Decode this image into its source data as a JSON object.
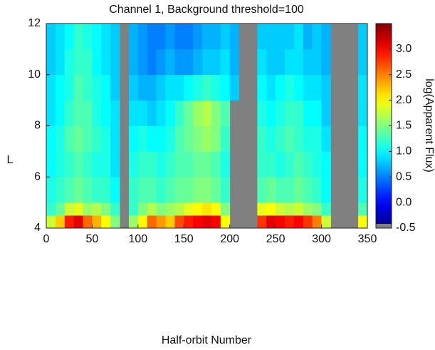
{
  "chart_data": {
    "type": "heatmap",
    "title": "Channel 1, Background threshold=100",
    "xlabel": "Half-orbit Number",
    "ylabel": "L",
    "colorbar_label": "log(Apparent Flux)",
    "colormap": "jet",
    "missing_color": "#808080",
    "xlim": [
      0,
      350
    ],
    "xticks": [
      0,
      50,
      100,
      150,
      200,
      250,
      300,
      350
    ],
    "ylim": [
      4,
      12
    ],
    "yticks": [
      4,
      6,
      8,
      10,
      12
    ],
    "clim": [
      -0.5,
      3.5
    ],
    "cticks": [
      -0.5,
      {
        "value": 0,
        "label": "0.0"
      },
      0.5,
      {
        "value": 1,
        "label": "1.0"
      },
      1.5,
      {
        "value": 2,
        "label": "2.0"
      },
      2.5,
      {
        "value": 3,
        "label": "3.0"
      }
    ],
    "x_edges": [
      0,
      10,
      20,
      30,
      40,
      50,
      60,
      70,
      80,
      90,
      100,
      110,
      120,
      130,
      140,
      150,
      160,
      170,
      180,
      190,
      200,
      210,
      220,
      230,
      240,
      250,
      260,
      270,
      280,
      290,
      300,
      310,
      320,
      330,
      340,
      350
    ],
    "y_edges": [
      4,
      4.5,
      5,
      6,
      7,
      8,
      9,
      10,
      11,
      12
    ],
    "z": [
      [
        1.8,
        2.2,
        2.9,
        3.1,
        2.6,
        2.3,
        2.0,
        1.5,
        null,
        1.6,
        2.0,
        2.6,
        2.4,
        2.2,
        2.7,
        2.9,
        3.0,
        3.1,
        3.0,
        2.0,
        null,
        null,
        null,
        2.8,
        3.1,
        3.0,
        2.9,
        3.0,
        2.8,
        2.5,
        1.8,
        null,
        null,
        null,
        2.0
      ],
      [
        1.2,
        1.4,
        1.8,
        1.9,
        1.6,
        1.7,
        1.5,
        1.2,
        null,
        1.2,
        1.5,
        1.7,
        1.5,
        1.6,
        1.7,
        1.9,
        2.0,
        2.1,
        2.0,
        1.5,
        null,
        null,
        null,
        1.9,
        2.0,
        1.8,
        1.7,
        1.8,
        1.6,
        1.5,
        1.2,
        null,
        null,
        null,
        1.3
      ],
      [
        1.1,
        1.2,
        1.3,
        1.4,
        1.3,
        1.2,
        1.2,
        1.0,
        null,
        1.2,
        1.3,
        1.3,
        1.2,
        1.3,
        1.4,
        1.4,
        1.5,
        1.5,
        1.4,
        1.2,
        null,
        null,
        null,
        1.3,
        1.4,
        1.3,
        1.3,
        1.4,
        1.3,
        1.2,
        1.0,
        null,
        null,
        null,
        1.1
      ],
      [
        1.0,
        1.1,
        1.2,
        1.3,
        1.2,
        1.1,
        1.1,
        0.9,
        null,
        1.1,
        1.2,
        1.2,
        1.1,
        1.2,
        1.3,
        1.3,
        1.4,
        1.4,
        1.3,
        1.1,
        null,
        null,
        null,
        1.2,
        1.2,
        1.1,
        1.2,
        1.3,
        1.2,
        1.1,
        1.0,
        null,
        null,
        null,
        1.0
      ],
      [
        1.0,
        1.1,
        1.3,
        1.4,
        1.3,
        1.2,
        1.1,
        0.9,
        null,
        1.0,
        1.1,
        1.0,
        1.0,
        1.1,
        1.3,
        1.4,
        1.5,
        1.6,
        1.5,
        1.2,
        null,
        null,
        null,
        1.2,
        1.1,
        1.2,
        1.3,
        1.2,
        1.1,
        1.1,
        0.9,
        null,
        null,
        null,
        1.0
      ],
      [
        0.9,
        1.0,
        1.2,
        1.3,
        1.3,
        1.1,
        1.0,
        0.9,
        null,
        0.9,
        0.9,
        0.8,
        0.9,
        1.0,
        1.2,
        1.4,
        1.6,
        1.7,
        1.5,
        1.3,
        null,
        null,
        null,
        1.1,
        1.0,
        1.1,
        1.2,
        1.2,
        1.0,
        1.0,
        0.8,
        null,
        null,
        null,
        0.9
      ],
      [
        0.9,
        1.0,
        1.1,
        1.3,
        1.2,
        1.1,
        1.0,
        0.8,
        null,
        0.8,
        0.7,
        0.7,
        0.8,
        0.9,
        0.9,
        1.0,
        1.1,
        1.2,
        1.1,
        1.0,
        0.8,
        null,
        null,
        1.0,
        0.9,
        1.0,
        1.1,
        1.0,
        0.9,
        0.9,
        0.8,
        null,
        null,
        null,
        0.9
      ],
      [
        0.8,
        0.9,
        1.1,
        1.2,
        1.2,
        1.0,
        0.9,
        0.8,
        null,
        0.7,
        0.6,
        0.5,
        0.6,
        0.7,
        0.6,
        0.6,
        0.7,
        0.8,
        0.8,
        0.9,
        0.7,
        null,
        null,
        0.9,
        0.8,
        0.8,
        0.9,
        0.9,
        0.8,
        0.8,
        0.7,
        null,
        null,
        null,
        0.8
      ],
      [
        0.8,
        0.9,
        1.0,
        1.2,
        1.1,
        1.0,
        0.9,
        0.8,
        null,
        0.7,
        0.6,
        0.5,
        0.5,
        0.6,
        0.5,
        0.5,
        0.6,
        0.7,
        0.7,
        0.8,
        0.7,
        null,
        null,
        0.8,
        0.8,
        0.8,
        0.8,
        0.9,
        0.7,
        0.8,
        0.7,
        null,
        null,
        null,
        0.8
      ]
    ]
  }
}
